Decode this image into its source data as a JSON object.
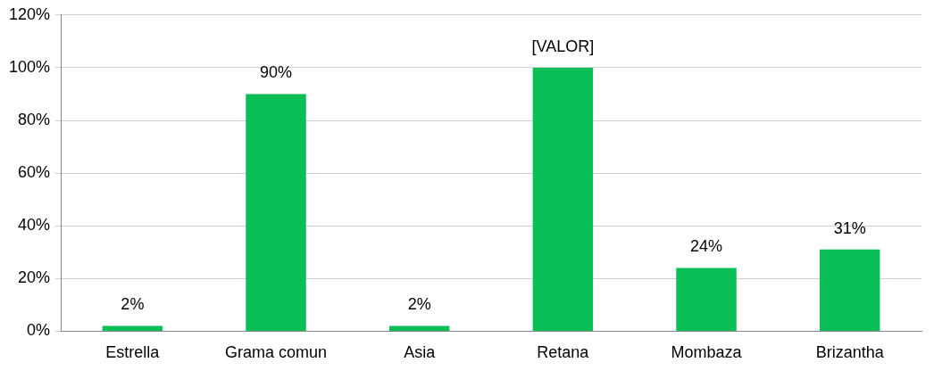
{
  "chart_data": {
    "type": "bar",
    "categories": [
      "Estrella",
      "Grama comun",
      "Asia",
      "Retana",
      "Mombaza",
      "Brizantha"
    ],
    "values": [
      2,
      90,
      2,
      100,
      24,
      31
    ],
    "value_labels": [
      "2%",
      "90%",
      "2%",
      "[VALOR]",
      "24%",
      "31%"
    ],
    "color": "#0abf55",
    "ylim": [
      0,
      120
    ],
    "yticks": [
      {
        "value": 0,
        "label": "0%"
      },
      {
        "value": 20,
        "label": "20%"
      },
      {
        "value": 40,
        "label": "40%"
      },
      {
        "value": 60,
        "label": "60%"
      },
      {
        "value": 80,
        "label": "80%"
      },
      {
        "value": 100,
        "label": "100%"
      },
      {
        "value": 120,
        "label": "120%"
      }
    ],
    "grid": "y",
    "legend": false
  }
}
